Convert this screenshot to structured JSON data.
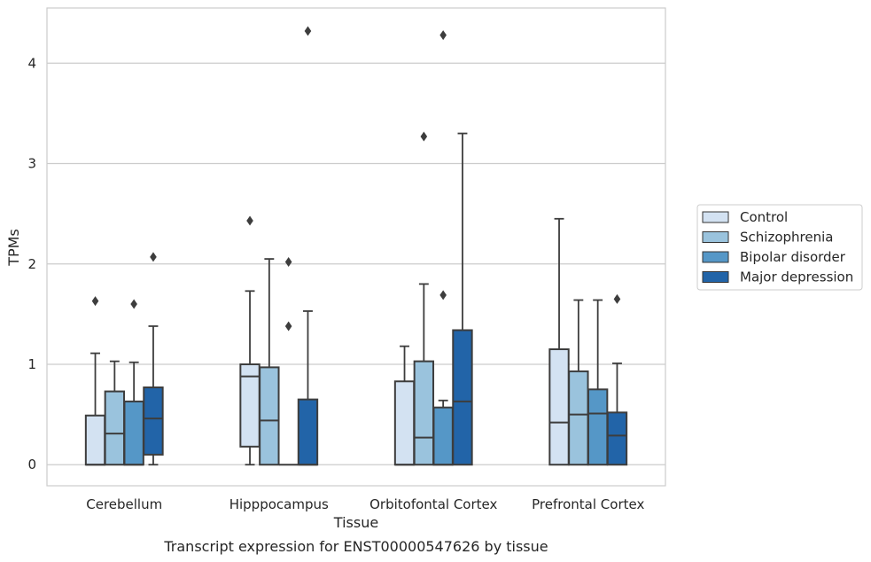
{
  "chart_data": {
    "type": "box",
    "xlabel": "Tissue",
    "ylabel": "TPMs",
    "caption": "Transcript expression for ENST00000547626 by tissue",
    "ylim": [
      -0.21,
      4.55
    ],
    "yticks": [
      0,
      1,
      2,
      3,
      4
    ],
    "grid": "horizontal",
    "legend_position": "right",
    "categories": [
      "Cerebellum",
      "Hipppocampus",
      "Orbitofontal Cortex",
      "Prefrontal Cortex"
    ],
    "series": [
      {
        "name": "Control",
        "color": "#d3e2f2",
        "boxes": [
          {
            "whislo": 0,
            "q1": 0,
            "med": 0,
            "q3": 0.49,
            "whishi": 1.11,
            "fliers": [
              1.63
            ]
          },
          {
            "whislo": 0,
            "q1": 0.18,
            "med": 0.88,
            "q3": 1.0,
            "whishi": 1.73,
            "fliers": [
              2.43
            ]
          },
          {
            "whislo": 0,
            "q1": 0,
            "med": 0,
            "q3": 0.83,
            "whishi": 1.18,
            "fliers": []
          },
          {
            "whislo": 0,
            "q1": 0,
            "med": 0.42,
            "q3": 1.15,
            "whishi": 2.45,
            "fliers": []
          }
        ]
      },
      {
        "name": "Schizophrenia",
        "color": "#9ac3dd",
        "boxes": [
          {
            "whislo": 0,
            "q1": 0,
            "med": 0.31,
            "q3": 0.73,
            "whishi": 1.03,
            "fliers": []
          },
          {
            "whislo": 0,
            "q1": 0,
            "med": 0.44,
            "q3": 0.97,
            "whishi": 2.05,
            "fliers": []
          },
          {
            "whislo": 0,
            "q1": 0,
            "med": 0.27,
            "q3": 1.03,
            "whishi": 1.8,
            "fliers": [
              3.27
            ]
          },
          {
            "whislo": 0,
            "q1": 0,
            "med": 0.5,
            "q3": 0.93,
            "whishi": 1.64,
            "fliers": []
          }
        ]
      },
      {
        "name": "Bipolar disorder",
        "color": "#5597c7",
        "boxes": [
          {
            "whislo": 0,
            "q1": 0,
            "med": 0,
            "q3": 0.63,
            "whishi": 1.02,
            "fliers": [
              1.6
            ]
          },
          {
            "whislo": 0,
            "q1": 0,
            "med": 0,
            "q3": 0,
            "whishi": 0,
            "fliers": [
              1.38,
              2.02
            ]
          },
          {
            "whislo": 0,
            "q1": 0,
            "med": 0,
            "q3": 0.57,
            "whishi": 0.64,
            "fliers": [
              1.69,
              4.28
            ]
          },
          {
            "whislo": 0,
            "q1": 0,
            "med": 0.51,
            "q3": 0.75,
            "whishi": 1.64,
            "fliers": []
          }
        ]
      },
      {
        "name": "Major depression",
        "color": "#2264a8",
        "boxes": [
          {
            "whislo": 0,
            "q1": 0.1,
            "med": 0.46,
            "q3": 0.77,
            "whishi": 1.38,
            "fliers": [
              2.07
            ]
          },
          {
            "whislo": 0,
            "q1": 0,
            "med": 0,
            "q3": 0.65,
            "whishi": 1.53,
            "fliers": [
              4.32
            ]
          },
          {
            "whislo": 0,
            "q1": 0,
            "med": 0.63,
            "q3": 1.34,
            "whishi": 3.3,
            "fliers": []
          },
          {
            "whislo": 0,
            "q1": 0,
            "med": 0.29,
            "q3": 0.52,
            "whishi": 1.01,
            "fliers": [
              1.65
            ]
          }
        ]
      }
    ]
  },
  "colors": {
    "box_edge": "#3d3d3d",
    "grid": "#cccccc",
    "frame": "#cccccc",
    "text": "#262626"
  }
}
